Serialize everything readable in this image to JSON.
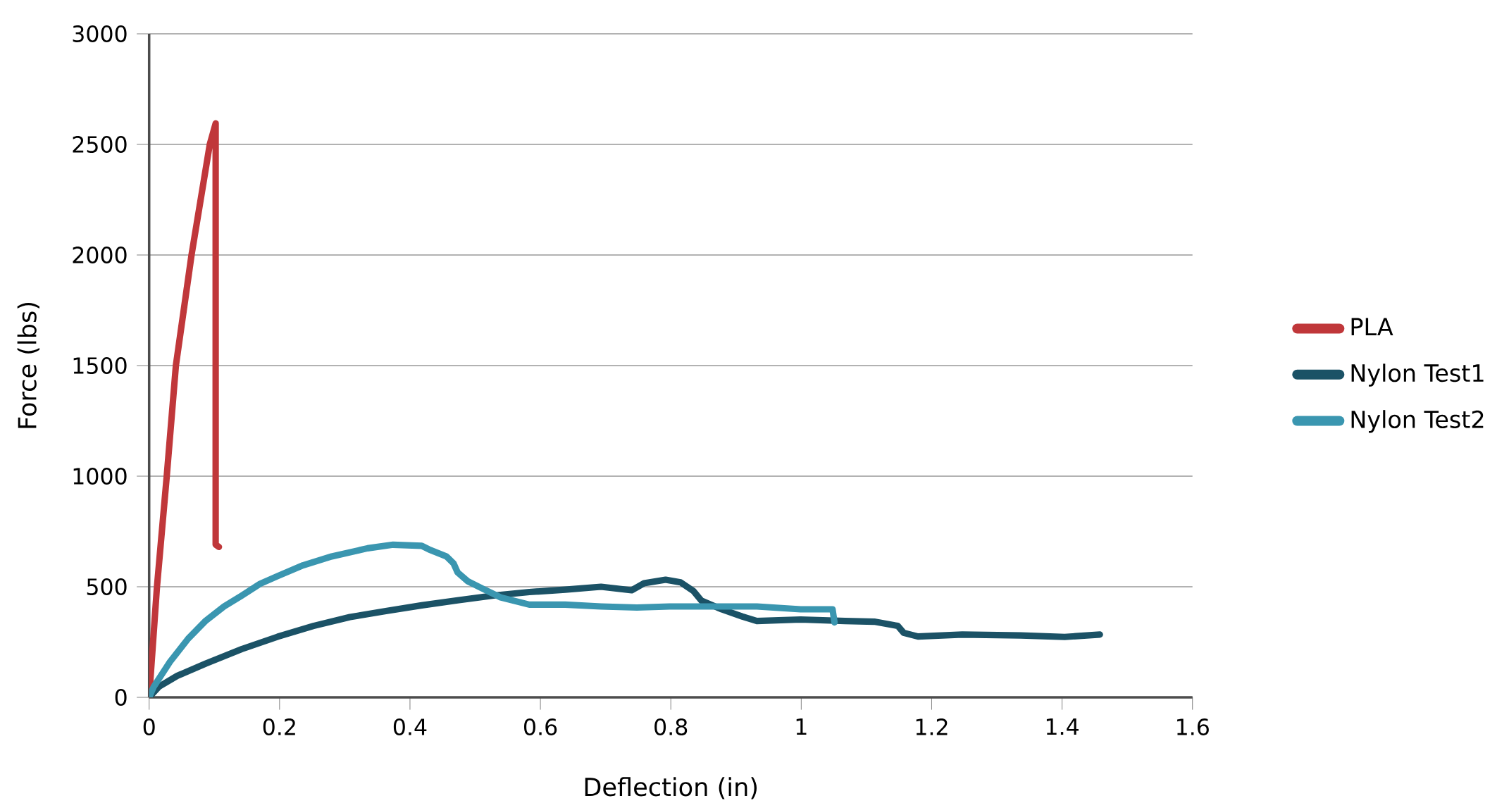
{
  "chart_data": {
    "type": "line",
    "xlabel": "Deflection (in)",
    "ylabel": "Force (lbs)",
    "xlim": [
      0,
      1.6
    ],
    "xticks": [
      0,
      0.2,
      0.4,
      0.6,
      0.8,
      1,
      1.2,
      1.4,
      1.6
    ],
    "ylim": [
      0,
      3000
    ],
    "yticks": [
      0,
      500,
      1000,
      1500,
      2000,
      2500,
      3000
    ],
    "grid": "y",
    "legend": "right",
    "line_style": "solid",
    "series": [
      {
        "name": "PLA",
        "color": "#c0373a",
        "x": [
          0,
          0.012,
          0.027,
          0.041,
          0.065,
          0.093,
          0.102,
          0.102,
          0.107
        ],
        "values": [
          0,
          500,
          1000,
          1500,
          2000,
          2500,
          2595,
          690,
          680
        ]
      },
      {
        "name": "Nylon Test1",
        "color": "#1b5266",
        "x": [
          0,
          0.015,
          0.043,
          0.087,
          0.142,
          0.197,
          0.252,
          0.308,
          0.363,
          0.418,
          0.473,
          0.528,
          0.583,
          0.638,
          0.693,
          0.74,
          0.759,
          0.792,
          0.815,
          0.835,
          0.847,
          0.878,
          0.91,
          0.932,
          0.999,
          1.067,
          1.112,
          1.148,
          1.157,
          1.179,
          1.247,
          1.337,
          1.404,
          1.458
        ],
        "values": [
          0,
          48,
          97,
          153,
          218,
          274,
          323,
          363,
          390,
          416,
          439,
          460,
          476,
          487,
          500,
          484,
          516,
          532,
          520,
          480,
          437,
          398,
          365,
          345,
          352,
          345,
          342,
          323,
          292,
          275,
          284,
          280,
          273,
          284
        ]
      },
      {
        "name": "Nylon Test2",
        "color": "#3a96b0",
        "x": [
          0,
          0.007,
          0.032,
          0.06,
          0.087,
          0.115,
          0.142,
          0.17,
          0.197,
          0.236,
          0.28,
          0.335,
          0.374,
          0.418,
          0.429,
          0.456,
          0.467,
          0.473,
          0.489,
          0.511,
          0.539,
          0.583,
          0.638,
          0.693,
          0.748,
          0.798,
          0.932,
          0.999,
          1.048,
          1.051
        ],
        "values": [
          0,
          48,
          161,
          266,
          347,
          411,
          460,
          513,
          548,
          597,
          637,
          674,
          690,
          685,
          669,
          637,
          605,
          565,
          524,
          492,
          452,
          419,
          419,
          411,
          406,
          411,
          411,
          398,
          398,
          339
        ]
      }
    ]
  }
}
